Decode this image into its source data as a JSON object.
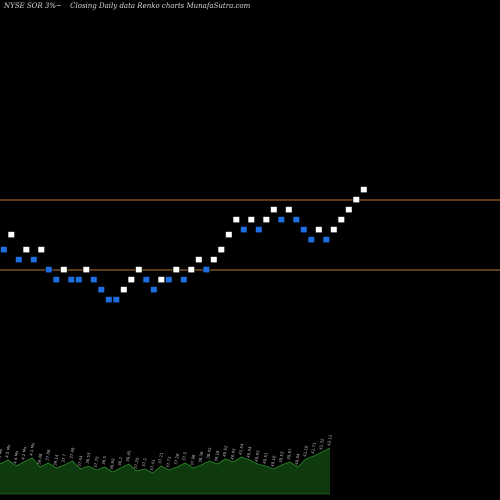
{
  "header": {
    "ticker": "NYSE SOR",
    "arrow": "3%~",
    "caption": "Closing Daily data Renko charts MunafaSutra.com"
  },
  "chart_data": {
    "type": "renko",
    "ylim": [
      0,
      40
    ],
    "reference_lines": [
      {
        "value": 22.0
      },
      {
        "value": 15.0
      }
    ],
    "bricks": [
      {
        "value": 17.0,
        "dir": "down"
      },
      {
        "value": 18.5,
        "dir": "up"
      },
      {
        "value": 16.0,
        "dir": "down"
      },
      {
        "value": 17.0,
        "dir": "up"
      },
      {
        "value": 16.0,
        "dir": "down"
      },
      {
        "value": 17.0,
        "dir": "up"
      },
      {
        "value": 15.0,
        "dir": "down"
      },
      {
        "value": 14.0,
        "dir": "down"
      },
      {
        "value": 15.0,
        "dir": "up"
      },
      {
        "value": 14.0,
        "dir": "down"
      },
      {
        "value": 14.0,
        "dir": "down"
      },
      {
        "value": 15.0,
        "dir": "up"
      },
      {
        "value": 14.0,
        "dir": "down"
      },
      {
        "value": 13.0,
        "dir": "down"
      },
      {
        "value": 12.0,
        "dir": "down"
      },
      {
        "value": 12.0,
        "dir": "down"
      },
      {
        "value": 13.0,
        "dir": "up"
      },
      {
        "value": 14.0,
        "dir": "up"
      },
      {
        "value": 15.0,
        "dir": "up"
      },
      {
        "value": 14.0,
        "dir": "down"
      },
      {
        "value": 13.0,
        "dir": "down"
      },
      {
        "value": 14.0,
        "dir": "up"
      },
      {
        "value": 14.0,
        "dir": "down"
      },
      {
        "value": 15.0,
        "dir": "up"
      },
      {
        "value": 14.0,
        "dir": "down"
      },
      {
        "value": 15.0,
        "dir": "up"
      },
      {
        "value": 16.0,
        "dir": "up"
      },
      {
        "value": 15.0,
        "dir": "down"
      },
      {
        "value": 16.0,
        "dir": "up"
      },
      {
        "value": 17.0,
        "dir": "up"
      },
      {
        "value": 18.5,
        "dir": "up"
      },
      {
        "value": 20.0,
        "dir": "up"
      },
      {
        "value": 19.0,
        "dir": "down"
      },
      {
        "value": 20.0,
        "dir": "up"
      },
      {
        "value": 19.0,
        "dir": "down"
      },
      {
        "value": 20.0,
        "dir": "up"
      },
      {
        "value": 21.0,
        "dir": "up"
      },
      {
        "value": 20.0,
        "dir": "down"
      },
      {
        "value": 21.0,
        "dir": "up"
      },
      {
        "value": 20.0,
        "dir": "down"
      },
      {
        "value": 19.0,
        "dir": "down"
      },
      {
        "value": 18.0,
        "dir": "down"
      },
      {
        "value": 19.0,
        "dir": "up"
      },
      {
        "value": 18.0,
        "dir": "down"
      },
      {
        "value": 19.0,
        "dir": "up"
      },
      {
        "value": 20.0,
        "dir": "up"
      },
      {
        "value": 21.0,
        "dir": "up"
      },
      {
        "value": 22.0,
        "dir": "up"
      },
      {
        "value": 23.0,
        "dir": "up"
      }
    ],
    "volume": [
      {
        "value": 30,
        "label": "4.4 Ms"
      },
      {
        "value": 34,
        "label": "4.5 Ms"
      },
      {
        "value": 28,
        "label": "4.4 Ms"
      },
      {
        "value": 32,
        "label": "4.2 Ms"
      },
      {
        "value": 36,
        "label": "4.1 Ms"
      },
      {
        "value": 27,
        "label": "39.48"
      },
      {
        "value": 31,
        "label": "37.08"
      },
      {
        "value": 26,
        "label": "39.14"
      },
      {
        "value": 29,
        "label": "37.7"
      },
      {
        "value": 33,
        "label": "37.48"
      },
      {
        "value": 25,
        "label": "37.44"
      },
      {
        "value": 28,
        "label": "36.53"
      },
      {
        "value": 24,
        "label": "37.79"
      },
      {
        "value": 27,
        "label": "36.5"
      },
      {
        "value": 22,
        "label": "36.69"
      },
      {
        "value": 26,
        "label": "36.2"
      },
      {
        "value": 30,
        "label": "36.45"
      },
      {
        "value": 23,
        "label": "37.29"
      },
      {
        "value": 25,
        "label": "37.2"
      },
      {
        "value": 21,
        "label": "37.41"
      },
      {
        "value": 28,
        "label": "37.21"
      },
      {
        "value": 24,
        "label": "37.73"
      },
      {
        "value": 27,
        "label": "37.28"
      },
      {
        "value": 31,
        "label": "37.5"
      },
      {
        "value": 26,
        "label": "37.98"
      },
      {
        "value": 29,
        "label": "38.36"
      },
      {
        "value": 33,
        "label": "38.42"
      },
      {
        "value": 30,
        "label": "39.18"
      },
      {
        "value": 35,
        "label": "40.52"
      },
      {
        "value": 32,
        "label": "40.93"
      },
      {
        "value": 37,
        "label": "41.54"
      },
      {
        "value": 34,
        "label": "40.54"
      },
      {
        "value": 30,
        "label": "40.93"
      },
      {
        "value": 28,
        "label": "40.51"
      },
      {
        "value": 25,
        "label": "40.16"
      },
      {
        "value": 29,
        "label": "39.53"
      },
      {
        "value": 32,
        "label": "39.87"
      },
      {
        "value": 27,
        "label": "40.04"
      },
      {
        "value": 35,
        "label": "41.16"
      },
      {
        "value": 38,
        "label": "41.71"
      },
      {
        "value": 42,
        "label": "41.32"
      },
      {
        "value": 46,
        "label": "42.12"
      }
    ],
    "colors": {
      "up": "#ffffff",
      "down": "#1e6fe0",
      "reference_line": "#b8762a",
      "volume": "#0f3a0f",
      "volume_line": "#2a8a2a"
    }
  }
}
